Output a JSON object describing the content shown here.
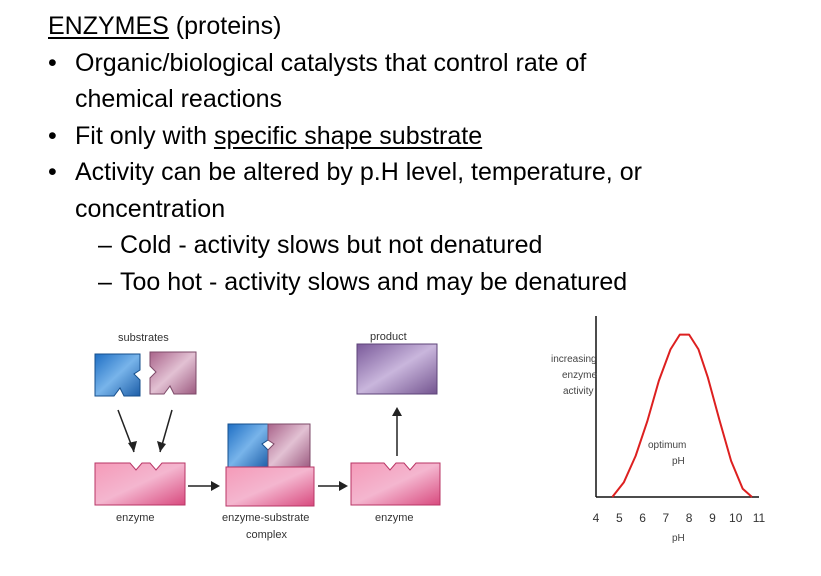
{
  "title": {
    "main": "ENZYMES",
    "sub": " (proteins)"
  },
  "bullets": [
    {
      "lines": [
        "Organic/biological catalysts that control rate of",
        "chemical reactions"
      ]
    },
    {
      "prefix": "Fit only with ",
      "underlined": "specific shape substrate"
    },
    {
      "lines": [
        "Activity can be altered by p.H level, temperature, or",
        "concentration"
      ]
    }
  ],
  "subbullets": [
    "Cold - activity slows but not denatured",
    "Too hot - activity slows and may be denatured"
  ],
  "diagram": {
    "label_substrates": "substrates",
    "label_product": "product",
    "label_enzyme_left": "enzyme",
    "label_complex_1": "enzyme-substrate",
    "label_complex_2": "complex",
    "label_enzyme_right": "enzyme",
    "colors": {
      "enzyme": "#e8578a",
      "substrate_blue": "#2f7fd0",
      "substrate_mauve": "#b27494",
      "product": "#8a6aa8"
    }
  },
  "chart_data": {
    "type": "line",
    "ylabel_lines": [
      "increasing",
      "enzyme",
      "activity"
    ],
    "xlabel": "pH",
    "annotation_lines": [
      "optimum",
      "pH"
    ],
    "x_ticks": [
      "4",
      "5",
      "6",
      "7",
      "8",
      "9",
      "10",
      "11"
    ],
    "xlim": [
      4,
      11
    ],
    "series": [
      {
        "color": "#dd2020",
        "x": [
          4.7,
          5.2,
          5.7,
          6.2,
          6.7,
          7.2,
          7.6,
          8.0,
          8.4,
          8.8,
          9.3,
          9.8,
          10.3,
          10.7
        ],
        "y": [
          0.0,
          0.09,
          0.25,
          0.46,
          0.71,
          0.9,
          0.99,
          0.99,
          0.9,
          0.73,
          0.47,
          0.22,
          0.05,
          0.0
        ]
      }
    ]
  }
}
